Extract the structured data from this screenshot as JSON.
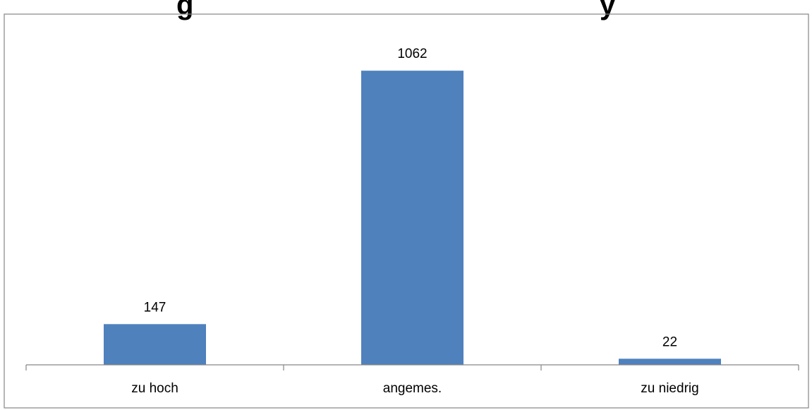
{
  "chart_data": {
    "type": "bar",
    "title": "...g                                    ...y",
    "categories": [
      "zu hoch",
      "angemes.",
      "zu niedrig"
    ],
    "values": [
      147,
      1062,
      22
    ],
    "data_labels": [
      "147",
      "1062",
      "22"
    ],
    "ylim": [
      0,
      1200
    ],
    "grid": false,
    "legend": "none",
    "bar_color": "#4F81BD",
    "axis_color": "#868686",
    "border_color": "#868686"
  }
}
